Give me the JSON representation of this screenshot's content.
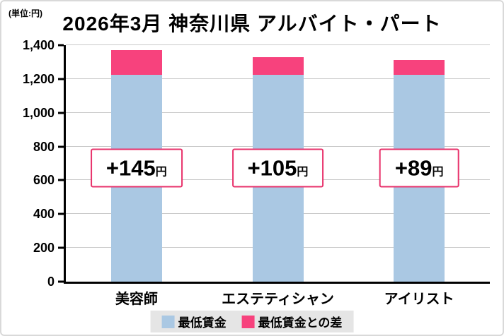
{
  "page": {
    "unit_label": "(単位:円)",
    "title": "2026年3月 神奈川県 アルバイト・パート"
  },
  "chart_data": {
    "type": "bar",
    "stacked": true,
    "title": "2026年3月 神奈川県 アルバイト・パート",
    "unit_label": "(単位:円)",
    "categories": [
      "美容師",
      "エステティシャン",
      "アイリスト"
    ],
    "series": [
      {
        "name": "最低賃金",
        "color": "#aac8e3",
        "values": [
          1225,
          1225,
          1225
        ]
      },
      {
        "name": "最低賃金との差",
        "color": "#f7427d",
        "values": [
          145,
          105,
          89
        ]
      }
    ],
    "totals": [
      1370,
      1330,
      1314
    ],
    "annotations": [
      {
        "value": "+145",
        "unit": "円"
      },
      {
        "value": "+105",
        "unit": "円"
      },
      {
        "value": "+89",
        "unit": "円"
      }
    ],
    "annotation_border_color": "#e8326b",
    "ylim": [
      0,
      1400
    ],
    "yticks": [
      "0",
      "200",
      "400",
      "600",
      "800",
      "1,000",
      "1,200",
      "1,400"
    ],
    "grid": true,
    "legend_position": "bottom"
  }
}
